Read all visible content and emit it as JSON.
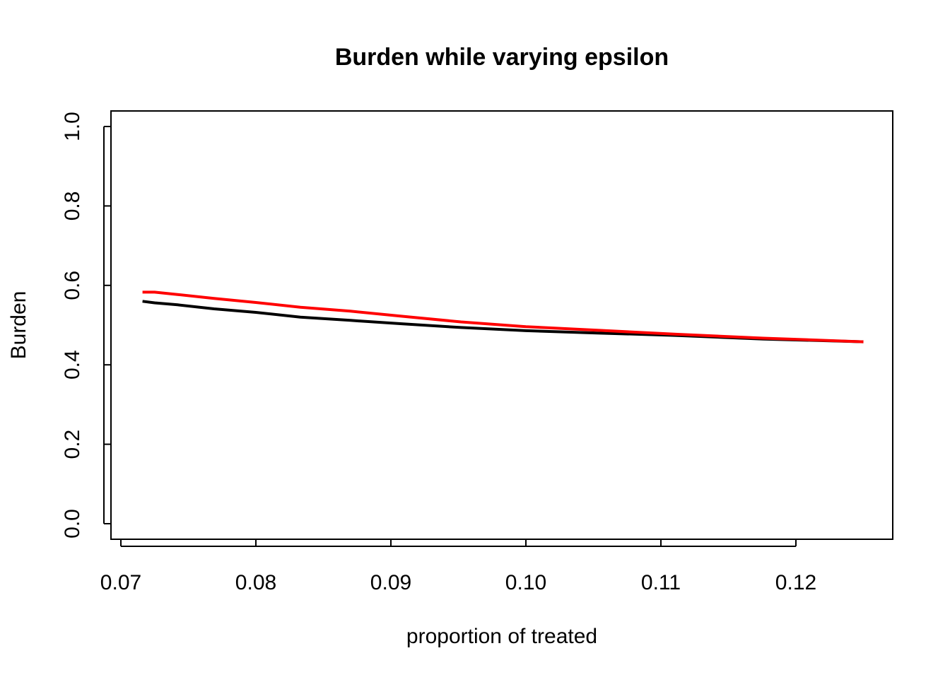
{
  "chart_data": {
    "type": "line",
    "title": "Burden while varying epsilon",
    "xlabel": "proportion of treated",
    "ylabel": "Burden",
    "xlim": [
      0.07,
      0.125
    ],
    "ylim": [
      0,
      1
    ],
    "x_ticks": [
      0.07,
      0.08,
      0.09,
      0.1,
      0.11,
      0.12
    ],
    "x_tick_labels": [
      "0.07",
      "0.08",
      "0.09",
      "0.10",
      "0.11",
      "0.12"
    ],
    "y_ticks": [
      0,
      0.2,
      0.4,
      0.6,
      0.8,
      1.0
    ],
    "y_tick_labels": [
      "0.0",
      "0.2",
      "0.4",
      "0.6",
      "0.8",
      "1.0"
    ],
    "grid": false,
    "legend": "none",
    "series": [
      {
        "color": "#000000",
        "x": [
          0.0716,
          0.0725,
          0.0742,
          0.0769,
          0.08,
          0.0833,
          0.087,
          0.0909,
          0.0952,
          0.1,
          0.1053,
          0.1111,
          0.1176,
          0.125
        ],
        "y": [
          0.56,
          0.556,
          0.551,
          0.541,
          0.532,
          0.52,
          0.512,
          0.503,
          0.494,
          0.486,
          0.48,
          0.474,
          0.465,
          0.458
        ]
      },
      {
        "color": "#ff0000",
        "x": [
          0.0716,
          0.0725,
          0.0742,
          0.0769,
          0.08,
          0.0833,
          0.087,
          0.0909,
          0.0952,
          0.1,
          0.1053,
          0.1111,
          0.1176,
          0.125
        ],
        "y": [
          0.583,
          0.583,
          0.577,
          0.567,
          0.557,
          0.545,
          0.535,
          0.522,
          0.508,
          0.496,
          0.487,
          0.477,
          0.467,
          0.458
        ]
      }
    ]
  }
}
